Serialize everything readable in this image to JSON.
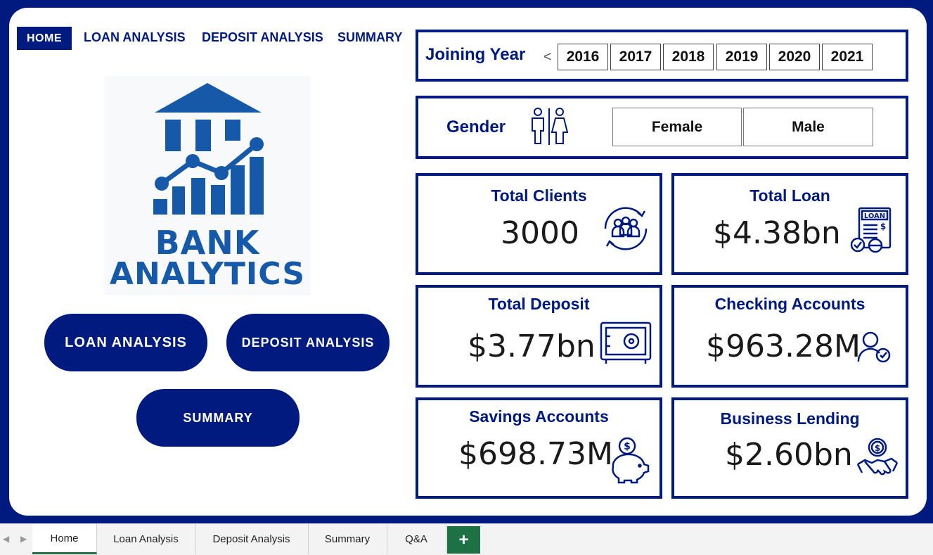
{
  "nav": {
    "home": "HOME",
    "loan": "LOAN ANALYSIS",
    "deposit": "DEPOSIT ANALYSIS",
    "summary": "SUMMARY"
  },
  "logo": {
    "line1": "BANK",
    "line2": "ANALYTICS"
  },
  "buttons": {
    "loan": "LOAN ANALYSIS",
    "deposit": "DEPOSIT ANALYSIS",
    "summary": "SUMMARY"
  },
  "year_slicer": {
    "title": "Joining Year",
    "chevron": "<",
    "years": [
      "2016",
      "2017",
      "2018",
      "2019",
      "2020",
      "2021"
    ]
  },
  "gender_slicer": {
    "title": "Gender",
    "options": [
      "Female",
      "Male"
    ]
  },
  "kpis": {
    "total_clients": {
      "title": "Total Clients",
      "value": "3000"
    },
    "total_loan": {
      "title": "Total Loan",
      "value": "$4.38bn",
      "icon_label": "LOAN"
    },
    "total_deposit": {
      "title": "Total Deposit",
      "value": "$3.77bn"
    },
    "checking_accounts": {
      "title": "Checking Accounts",
      "value": "$963.28M"
    },
    "savings_accounts": {
      "title": "Savings Accounts",
      "value": "$698.73M"
    },
    "business_lending": {
      "title": "Business Lending",
      "value": "$2.60bn"
    }
  },
  "tabs": {
    "items": [
      "Home",
      "Loan Analysis",
      "Deposit Analysis",
      "Summary",
      "Q&A"
    ],
    "add": "+"
  },
  "colors": {
    "navy": "#001a80",
    "logo_blue": "#1559a8",
    "sheet_green": "#1e7145"
  }
}
